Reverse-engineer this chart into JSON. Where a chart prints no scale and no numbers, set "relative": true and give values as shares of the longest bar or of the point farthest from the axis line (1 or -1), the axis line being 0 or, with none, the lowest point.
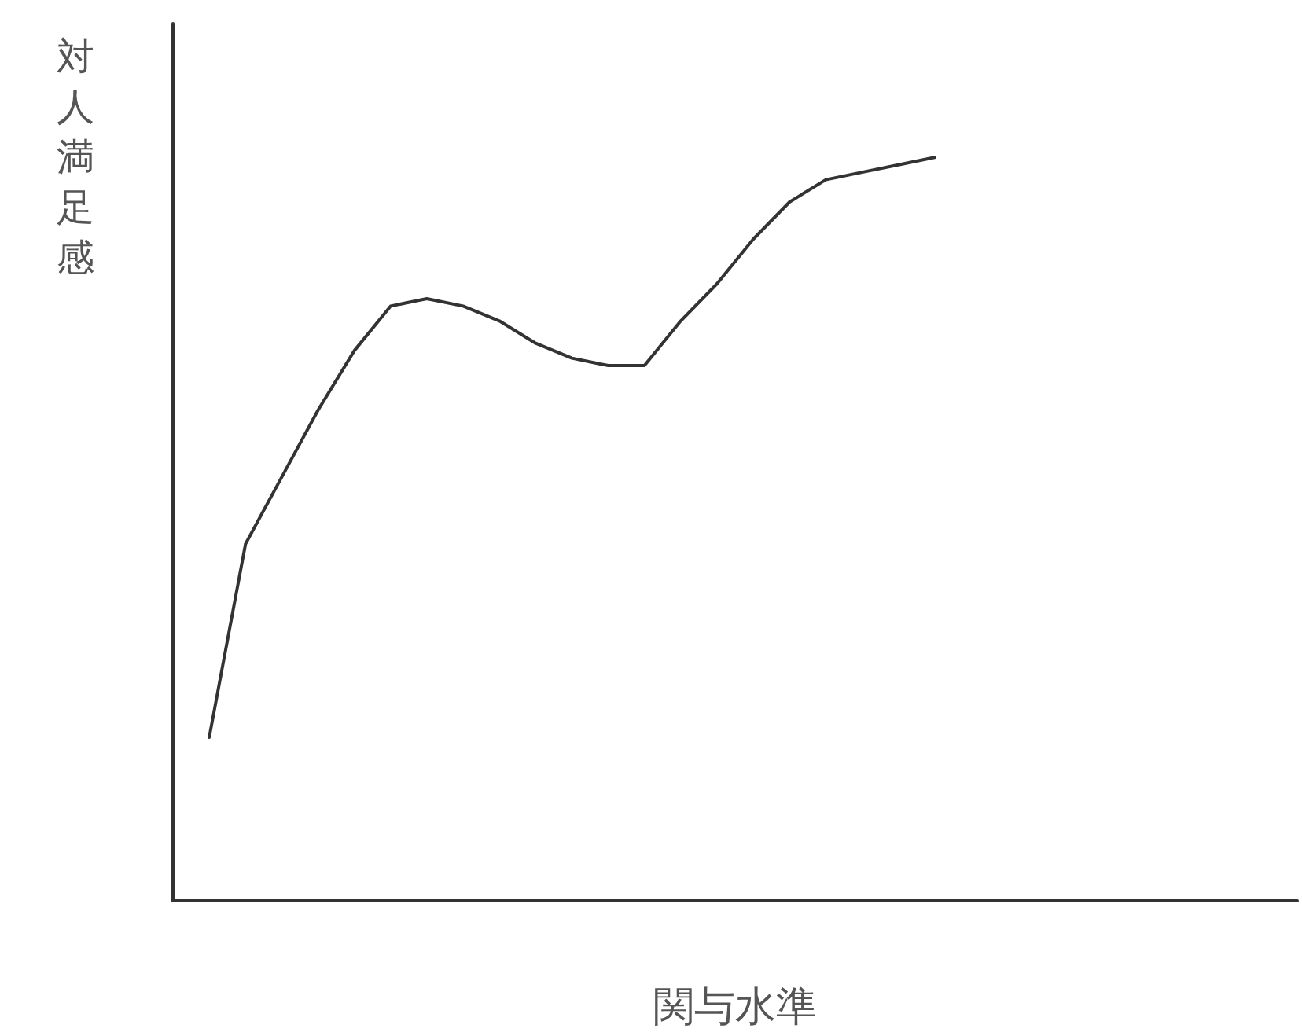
{
  "chart_data": {
    "type": "line",
    "relative": true,
    "xlabel": "関与水準",
    "ylabel": "対人満足感",
    "marker": "none",
    "line_style": "solid",
    "categories": [
      null,
      null,
      null,
      null,
      null,
      null,
      null,
      null,
      null,
      null,
      null,
      null,
      null,
      null,
      null,
      null,
      null,
      null,
      null,
      null,
      null,
      null,
      null,
      null,
      null,
      null,
      null,
      null,
      null,
      null,
      null,
      null
    ],
    "series": [
      {
        "color": "#333333",
        "values": [
          null,
          0.22,
          0.48,
          0.57,
          0.66,
          0.74,
          0.8,
          0.81,
          0.8,
          0.78,
          0.75,
          0.73,
          0.72,
          0.72,
          0.78,
          0.83,
          0.89,
          0.94,
          0.97,
          0.98,
          0.99,
          1,
          null,
          null,
          null,
          null,
          null,
          null,
          null,
          null,
          null,
          null
        ]
      }
    ]
  }
}
